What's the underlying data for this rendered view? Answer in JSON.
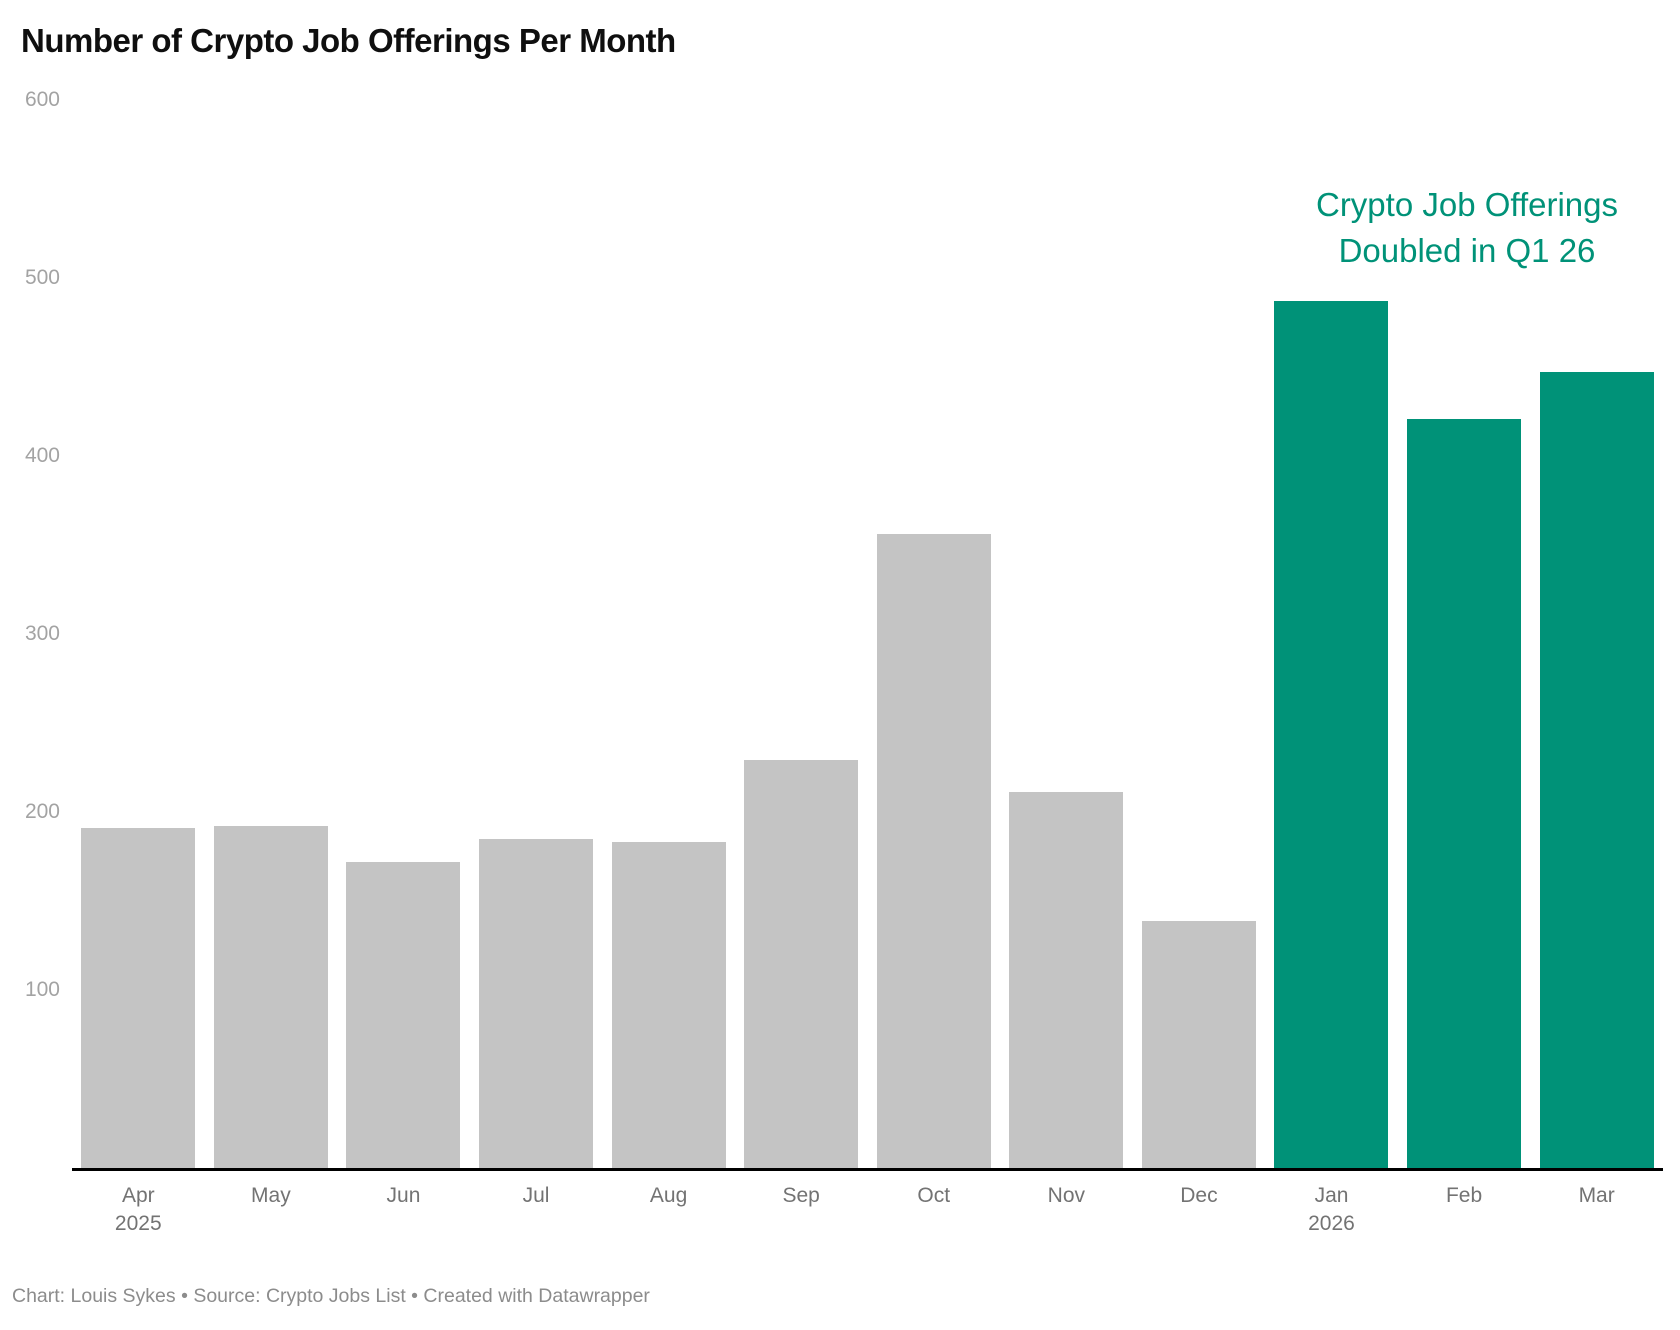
{
  "header": {
    "title": "Number of Crypto Job Offerings Per Month"
  },
  "annotation": {
    "line1": "Crypto Job Offerings",
    "line2": "Doubled in Q1 26",
    "color": "#009278"
  },
  "footer": {
    "text": "Chart: Louis Sykes • Source: Crypto Jobs List • Created with Datawrapper"
  },
  "chart_data": {
    "type": "bar",
    "title": "Number of Crypto Job Offerings Per Month",
    "categories": [
      "Apr",
      "May",
      "Jun",
      "Jul",
      "Aug",
      "Sep",
      "Oct",
      "Nov",
      "Dec",
      "Jan",
      "Feb",
      "Mar"
    ],
    "year_sublabels": [
      "2025",
      "",
      "",
      "",
      "",
      "",
      "",
      "",
      "",
      "2026",
      "",
      ""
    ],
    "values": [
      191,
      192,
      172,
      185,
      183,
      229,
      356,
      211,
      139,
      487,
      421,
      447
    ],
    "highlight_categories": [
      "Jan",
      "Feb",
      "Mar"
    ],
    "colors": {
      "default_bar": "#c4c4c4",
      "highlight_bar": "#009278",
      "axis_line": "#000000"
    },
    "xlabel": "",
    "ylabel": "",
    "ylim": [
      0,
      600
    ],
    "yticks": [
      100,
      200,
      300,
      400,
      500,
      600
    ],
    "grid": false,
    "legend": "none",
    "annotation_text": "Crypto Job Offerings Doubled in Q1 26"
  }
}
